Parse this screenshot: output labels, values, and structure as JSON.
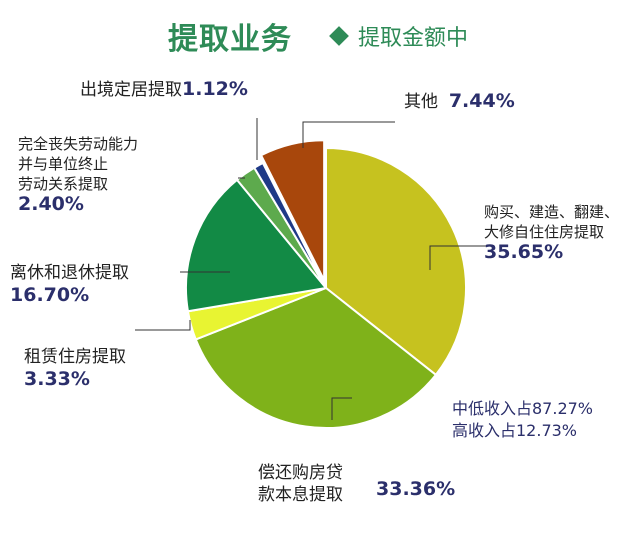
{
  "title": "提取业务",
  "subtitle": "提取金额中",
  "colors": {
    "accent": "#2e8b57",
    "percent_text": "#2b2f6b"
  },
  "chart_data": {
    "type": "pie",
    "title": "提取业务",
    "subtitle": "提取金额中",
    "slices": [
      {
        "label": "购买、建造、翻建、大修自住住房提取",
        "value": 35.65,
        "value_text": "35.65%",
        "color": "#c6c21f"
      },
      {
        "label": "偿还购房贷款本息提取",
        "value": 33.36,
        "value_text": "33.36%",
        "color": "#7fb21a"
      },
      {
        "label": "租赁住房提取",
        "value": 3.33,
        "value_text": "3.33%",
        "color": "#e8f432"
      },
      {
        "label": "离休和退休提取",
        "value": 16.7,
        "value_text": "16.70%",
        "color": "#128a45"
      },
      {
        "label": "完全丧失劳动能力并与单位终止劳动关系提取",
        "value": 2.4,
        "value_text": "2.40%",
        "color": "#5daa4d"
      },
      {
        "label": "出境定居提取",
        "value": 1.12,
        "value_text": "1.12%",
        "color": "#1f3a87"
      },
      {
        "label": "其他",
        "value": 7.44,
        "value_text": "7.44%",
        "color": "#a8470c"
      }
    ],
    "annotation": {
      "line1": "中低收入占87.27%",
      "line2": "高收入占12.73%"
    }
  },
  "labels": {
    "purchase_l1": "购买、建造、翻建、",
    "purchase_l2": "大修自住住房提取",
    "repay_l1": "偿还购房贷",
    "repay_l2": "款本息提取",
    "rent": "租赁住房提取",
    "retire": "离休和退休提取",
    "disable_l1": "完全丧失劳动能力",
    "disable_l2": "并与单位终止",
    "disable_l3": "劳动关系提取",
    "abroad": "出境定居提取",
    "other": "其他"
  }
}
